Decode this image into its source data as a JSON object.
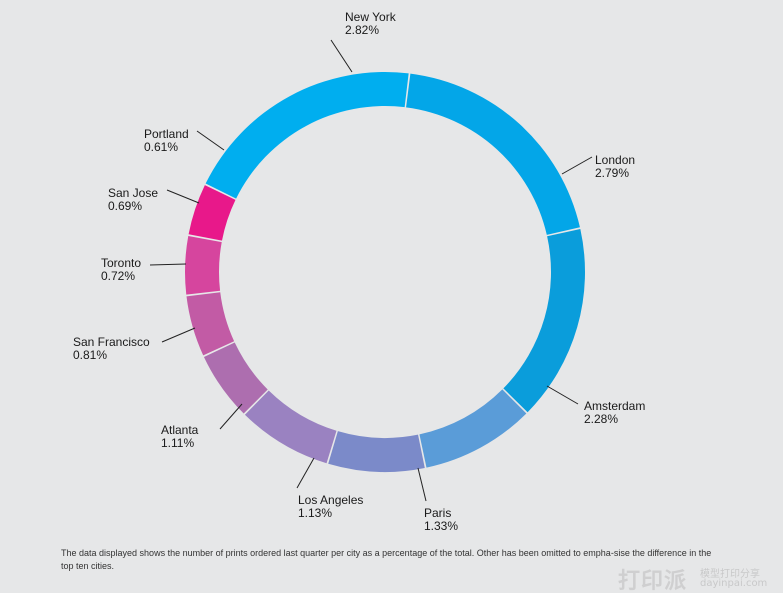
{
  "chart_data": {
    "type": "pie",
    "style": "donut",
    "slices": [
      {
        "label": "New York",
        "value": 2.82,
        "display": "2.82%",
        "color": "#00aeef"
      },
      {
        "label": "London",
        "value": 2.79,
        "display": "2.79%",
        "color": "#03a6e8"
      },
      {
        "label": "Amsterdam",
        "value": 2.28,
        "display": "2.28%",
        "color": "#0a9ddb"
      },
      {
        "label": "Paris",
        "value": 1.33,
        "display": "1.33%",
        "color": "#5a9cd8"
      },
      {
        "label": "Los Angeles",
        "value": 1.13,
        "display": "1.13%",
        "color": "#7b8ac9"
      },
      {
        "label": "Atlanta",
        "value": 1.11,
        "display": "1.11%",
        "color": "#9a82c1"
      },
      {
        "label": "San Francisco",
        "value": 0.81,
        "display": "0.81%",
        "color": "#ad6eaf"
      },
      {
        "label": "Toronto",
        "value": 0.72,
        "display": "0.72%",
        "color": "#c25ba5"
      },
      {
        "label": "San Jose",
        "value": 0.69,
        "display": "0.69%",
        "color": "#d6459e"
      },
      {
        "label": "Portland",
        "value": 0.61,
        "display": "0.61%",
        "color": "#e8188a"
      }
    ],
    "legend": "none",
    "labels": "outside with leader lines"
  },
  "caption": "The data displayed shows the number of prints ordered last quarter per city as a percentage of the total. Other has been omitted to empha-sise the difference in the top ten cities.",
  "watermark": {
    "main": "打印派",
    "sub": "模型打印分享",
    "url": "dayinpai.com"
  }
}
